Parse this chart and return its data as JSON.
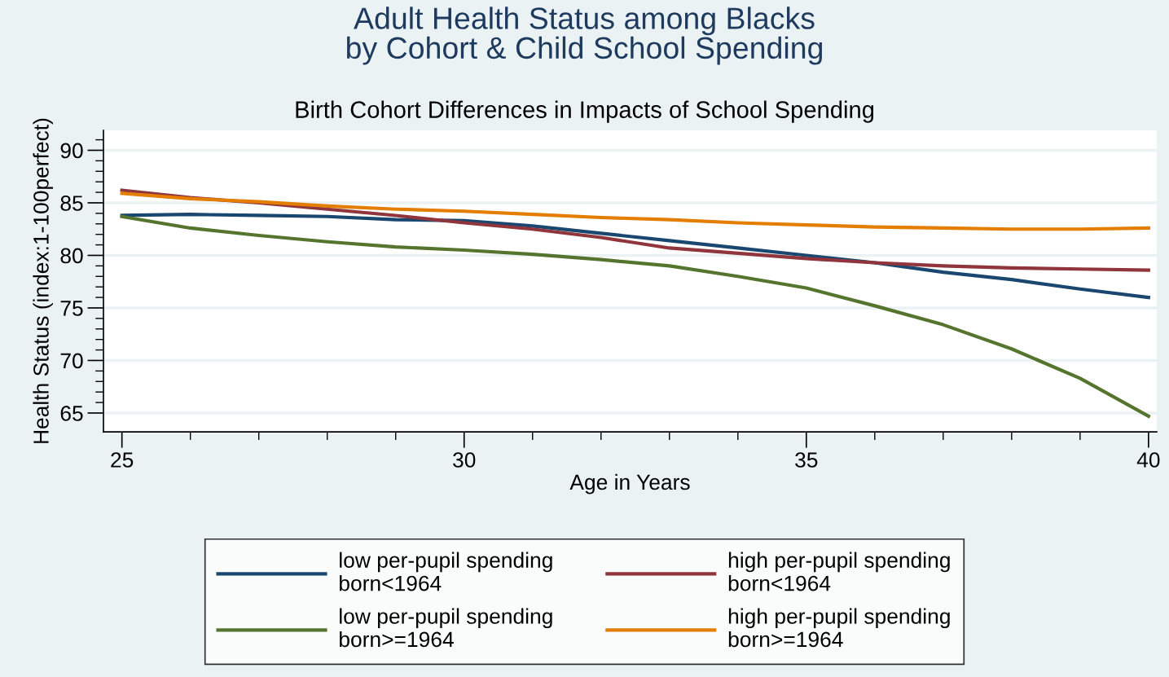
{
  "chart_data": {
    "type": "line",
    "title": "Adult Health Status among Blacks\nby Cohort & Child School Spending",
    "subtitle": "Birth Cohort Differences in Impacts of School Spending",
    "xlabel": "Age in Years",
    "ylabel": "Health Status (index:1-100perfect)",
    "x": [
      25,
      26,
      27,
      28,
      29,
      30,
      31,
      32,
      33,
      34,
      35,
      36,
      37,
      38,
      39,
      40
    ],
    "series": [
      {
        "name": "low per-pupil spending\nborn<1964",
        "color": "#1a476f",
        "values": [
          83.8,
          83.9,
          83.8,
          83.7,
          83.4,
          83.3,
          82.8,
          82.1,
          81.4,
          80.7,
          80.0,
          79.3,
          78.4,
          77.7,
          76.8,
          76.0
        ]
      },
      {
        "name": "high per-pupil spending\nborn<1964",
        "color": "#90353b",
        "values": [
          86.2,
          85.5,
          85.0,
          84.4,
          83.8,
          83.1,
          82.5,
          81.7,
          80.7,
          80.2,
          79.7,
          79.3,
          79.0,
          78.8,
          78.7,
          78.6
        ]
      },
      {
        "name": "low per-pupil spending\nborn>=1964",
        "color": "#55752f",
        "values": [
          83.7,
          82.6,
          81.9,
          81.3,
          80.8,
          80.5,
          80.1,
          79.6,
          79.0,
          78.0,
          76.9,
          75.2,
          73.4,
          71.1,
          68.3,
          64.7
        ]
      },
      {
        "name": "high per-pupil spending\nborn>=1964",
        "color": "#e37e00",
        "values": [
          85.9,
          85.4,
          85.1,
          84.7,
          84.4,
          84.2,
          83.9,
          83.6,
          83.4,
          83.1,
          82.9,
          82.7,
          82.6,
          82.5,
          82.5,
          82.6
        ]
      }
    ],
    "xlim": [
      24.73,
      40.12
    ],
    "ylim": [
      63.2,
      91.9
    ],
    "xticks": [
      25,
      {
        "value": 26,
        "label": null
      },
      {
        "value": 27,
        "label": null
      },
      {
        "value": 28,
        "label": null
      },
      {
        "value": 29,
        "label": null
      },
      30,
      {
        "value": 31,
        "label": null
      },
      {
        "value": 32,
        "label": null
      },
      {
        "value": 33,
        "label": null
      },
      {
        "value": 34,
        "label": null
      },
      35,
      {
        "value": 36,
        "label": null
      },
      {
        "value": 37,
        "label": null
      },
      {
        "value": 38,
        "label": null
      },
      {
        "value": 39,
        "label": null
      },
      40
    ],
    "yticks": [
      65,
      {
        "value": 66,
        "label": null
      },
      {
        "value": 67,
        "label": null
      },
      {
        "value": 68,
        "label": null
      },
      {
        "value": 69,
        "label": null
      },
      70,
      {
        "value": 71,
        "label": null
      },
      {
        "value": 72,
        "label": null
      },
      {
        "value": 73,
        "label": null
      },
      {
        "value": 74,
        "label": null
      },
      75,
      {
        "value": 76,
        "label": null
      },
      {
        "value": 77,
        "label": null
      },
      {
        "value": 78,
        "label": null
      },
      {
        "value": 79,
        "label": null
      },
      80,
      {
        "value": 81,
        "label": null
      },
      {
        "value": 82,
        "label": null
      },
      {
        "value": 83,
        "label": null
      },
      {
        "value": 84,
        "label": null
      },
      85,
      {
        "value": 86,
        "label": null
      },
      {
        "value": 87,
        "label": null
      },
      {
        "value": 88,
        "label": null
      },
      {
        "value": 89,
        "label": null
      },
      90,
      {
        "value": 91,
        "label": null
      }
    ],
    "grid": "y",
    "legend": "bottom",
    "marker": "none",
    "line_style": "solid"
  }
}
